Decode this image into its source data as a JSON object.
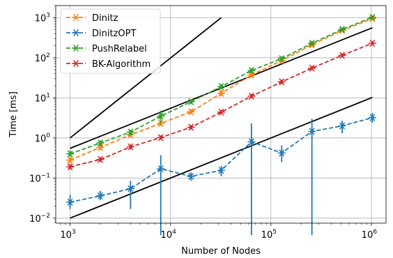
{
  "chart_data": {
    "type": "line",
    "xscale": "log",
    "yscale": "log",
    "xlabel": "Number of Nodes",
    "ylabel": "Time [ms]",
    "xlim": [
      720,
      1400000
    ],
    "ylim": [
      0.0075,
      2000
    ],
    "grid": true,
    "legend_position": "top-left",
    "x_ticks": [
      {
        "value": 1000,
        "base": "10",
        "exp": "3"
      },
      {
        "value": 10000,
        "base": "10",
        "exp": "4"
      },
      {
        "value": 100000,
        "base": "10",
        "exp": "5"
      },
      {
        "value": 1000000,
        "base": "10",
        "exp": "6"
      }
    ],
    "y_ticks": [
      {
        "value": 0.01,
        "base": "10",
        "exp": "−2"
      },
      {
        "value": 0.1,
        "base": "10",
        "exp": "−1"
      },
      {
        "value": 1,
        "base": "10",
        "exp": "0"
      },
      {
        "value": 10,
        "base": "10",
        "exp": "1"
      },
      {
        "value": 100,
        "base": "10",
        "exp": "2"
      },
      {
        "value": 1000,
        "base": "10",
        "exp": "3"
      }
    ],
    "x": [
      1000,
      2000,
      4000,
      8000,
      16000,
      32000,
      64000,
      128000,
      256000,
      512000,
      1024000
    ],
    "series": [
      {
        "name": "Dinitz",
        "color": "#ff7f0e",
        "values": [
          0.28,
          0.58,
          1.2,
          2.3,
          4.5,
          13,
          37,
          85,
          210,
          480,
          950
        ],
        "err_low": [
          0.24,
          0.5,
          1.05,
          2.0,
          3.9,
          11,
          32,
          75,
          185,
          430,
          860
        ],
        "err_high": [
          0.33,
          0.68,
          1.4,
          2.7,
          5.2,
          16,
          43,
          96,
          240,
          530,
          1050
        ]
      },
      {
        "name": "DinitzOPT",
        "color": "#1f77b4",
        "values": [
          0.025,
          0.036,
          0.054,
          0.17,
          0.11,
          0.155,
          0.8,
          0.42,
          1.45,
          2.0,
          3.2
        ],
        "err_low": [
          0.017,
          0.028,
          0.017,
          0.001,
          0.085,
          0.11,
          0.001,
          0.25,
          0.001,
          1.3,
          2.4
        ],
        "err_high": [
          0.038,
          0.048,
          0.085,
          0.37,
          0.14,
          0.2,
          2.3,
          0.65,
          3.0,
          2.7,
          4.2
        ]
      },
      {
        "name": "PushRelabel",
        "color": "#2ca02c",
        "values": [
          0.4,
          0.75,
          1.4,
          3.5,
          8,
          19,
          48,
          95,
          230,
          510,
          1020
        ],
        "err_low": [
          0.34,
          0.65,
          1.2,
          2.4,
          7,
          16.5,
          42,
          84,
          205,
          460,
          920
        ],
        "err_high": [
          0.48,
          0.86,
          1.6,
          4.8,
          9.2,
          22,
          55,
          108,
          260,
          565,
          1130
        ]
      },
      {
        "name": "BK-Algorithm",
        "color": "#d62728",
        "values": [
          0.19,
          0.29,
          0.6,
          1.02,
          1.85,
          4.4,
          11,
          25,
          55,
          115,
          230
        ],
        "err_low": [
          0.165,
          0.255,
          0.52,
          0.9,
          1.62,
          3.9,
          9.7,
          22,
          49,
          103,
          205
        ],
        "err_high": [
          0.22,
          0.33,
          0.69,
          1.16,
          2.1,
          5.0,
          12.5,
          28.5,
          62,
          128,
          258
        ]
      }
    ],
    "reference_lines": [
      {
        "x": [
          1000,
          32000
        ],
        "y": [
          1,
          1000
        ],
        "color": "#000000"
      },
      {
        "x": [
          1000,
          1024000
        ],
        "y": [
          0.55,
          560
        ],
        "color": "#000000"
      },
      {
        "x": [
          1000,
          1024000
        ],
        "y": [
          0.01,
          10.24
        ],
        "color": "#000000"
      }
    ]
  }
}
